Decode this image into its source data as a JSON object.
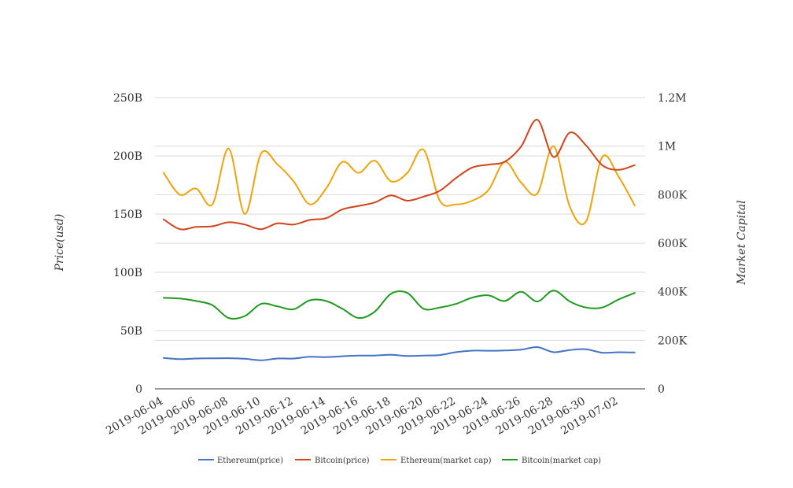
{
  "chart_data": {
    "type": "line",
    "title": "",
    "x": [
      "2019-06-04",
      "2019-06-05",
      "2019-06-06",
      "2019-06-07",
      "2019-06-08",
      "2019-06-09",
      "2019-06-10",
      "2019-06-11",
      "2019-06-12",
      "2019-06-13",
      "2019-06-14",
      "2019-06-15",
      "2019-06-16",
      "2019-06-17",
      "2019-06-18",
      "2019-06-19",
      "2019-06-20",
      "2019-06-21",
      "2019-06-22",
      "2019-06-23",
      "2019-06-24",
      "2019-06-25",
      "2019-06-26",
      "2019-06-27",
      "2019-06-28",
      "2019-06-29",
      "2019-06-30",
      "2019-07-01",
      "2019-07-02",
      "2019-07-03"
    ],
    "x_tick_labels": [
      "2019-06-04",
      "2019-06-06",
      "2019-06-08",
      "2019-06-10",
      "2019-06-12",
      "2019-06-14",
      "2019-06-16",
      "2019-06-18",
      "2019-06-20",
      "2019-06-22",
      "2019-06-24",
      "2019-06-26",
      "2019-06-28",
      "2019-06-30",
      "2019-07-02"
    ],
    "y_left": {
      "label": "Price(usd)",
      "range": [
        0,
        250000000000
      ],
      "ticks": [
        0,
        50000000000,
        100000000000,
        150000000000,
        200000000000,
        250000000000
      ],
      "tick_labels": [
        "0",
        "50B",
        "100B",
        "150B",
        "200B",
        "250B"
      ]
    },
    "y_right": {
      "label": "Market Capital",
      "range": [
        0,
        1200000
      ],
      "ticks": [
        0,
        200000,
        400000,
        600000,
        800000,
        1000000,
        1200000
      ],
      "tick_labels": [
        "0",
        "200K",
        "400K",
        "600K",
        "800K",
        "1M",
        "1.2M"
      ]
    },
    "grid": true,
    "legend_position": "bottom-center",
    "series": [
      {
        "name": "Ethereum(price)",
        "color": "#4472c4",
        "axis": "left",
        "values": [
          26500000000,
          25500000000,
          26000000000,
          26200000000,
          26300000000,
          25800000000,
          24500000000,
          26000000000,
          26000000000,
          27500000000,
          27200000000,
          28000000000,
          28500000000,
          28600000000,
          29200000000,
          28200000000,
          28600000000,
          29000000000,
          31500000000,
          32800000000,
          32700000000,
          32900000000,
          33600000000,
          35800000000,
          31500000000,
          33300000000,
          34000000000,
          31000000000,
          31400000000,
          31200000000
        ]
      },
      {
        "name": "Bitcoin(price)",
        "color": "#d2441b",
        "axis": "left",
        "values": [
          145500000000,
          137000000000,
          139000000000,
          139500000000,
          143000000000,
          141000000000,
          137000000000,
          142000000000,
          141000000000,
          145000000000,
          146500000000,
          154000000000,
          157000000000,
          160000000000,
          166000000000,
          161500000000,
          165000000000,
          170000000000,
          181000000000,
          190000000000,
          192500000000,
          195000000000,
          208000000000,
          231000000000,
          199000000000,
          220000000000,
          209000000000,
          192000000000,
          188000000000,
          192000000000
        ]
      },
      {
        "name": "Ethereum(market cap)",
        "color": "#f0a30a",
        "axis": "right",
        "values": [
          890000,
          800000,
          825000,
          760000,
          990000,
          720000,
          970000,
          925000,
          855000,
          760000,
          825000,
          935000,
          890000,
          940000,
          855000,
          890000,
          985000,
          775000,
          760000,
          775000,
          820000,
          935000,
          850000,
          805000,
          1000000,
          750000,
          690000,
          955000,
          875000,
          755000
        ]
      },
      {
        "name": "Bitcoin(market cap)",
        "color": "#1e9a1e",
        "axis": "right",
        "values": [
          375000,
          372000,
          362000,
          345000,
          292000,
          300000,
          350000,
          340000,
          328000,
          365000,
          362000,
          330000,
          292000,
          318000,
          392000,
          395000,
          330000,
          335000,
          350000,
          376000,
          385000,
          362000,
          400000,
          360000,
          405000,
          360000,
          335000,
          335000,
          368000,
          395000
        ]
      }
    ]
  }
}
